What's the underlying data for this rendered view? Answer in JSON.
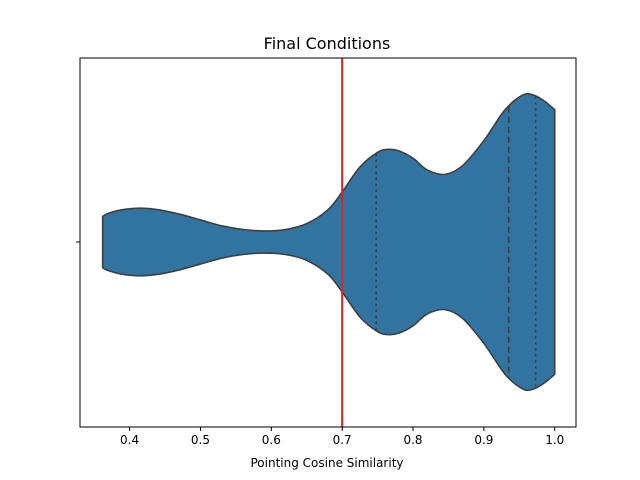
{
  "chart_data": {
    "type": "violin",
    "title": "Final Conditions",
    "xlabel": "Pointing Cosine Similarity",
    "ylabel": "",
    "orientation": "horizontal",
    "xlim": [
      0.33,
      1.03
    ],
    "xticks": [
      0.4,
      0.5,
      0.6,
      0.7,
      0.8,
      0.9,
      1.0
    ],
    "xtick_labels": [
      "0.4",
      "0.5",
      "0.6",
      "0.7",
      "0.8",
      "0.9",
      "1.0"
    ],
    "grid": false,
    "violin": {
      "min": 0.362,
      "max": 1.0,
      "density_profile": [
        {
          "x": 0.362,
          "w": 0.175
        },
        {
          "x": 0.37,
          "w": 0.195
        },
        {
          "x": 0.39,
          "w": 0.22
        },
        {
          "x": 0.415,
          "w": 0.23
        },
        {
          "x": 0.44,
          "w": 0.22
        },
        {
          "x": 0.47,
          "w": 0.19
        },
        {
          "x": 0.5,
          "w": 0.15
        },
        {
          "x": 0.53,
          "w": 0.11
        },
        {
          "x": 0.56,
          "w": 0.085
        },
        {
          "x": 0.59,
          "w": 0.075
        },
        {
          "x": 0.62,
          "w": 0.085
        },
        {
          "x": 0.65,
          "w": 0.125
        },
        {
          "x": 0.68,
          "w": 0.22
        },
        {
          "x": 0.7,
          "w": 0.34
        },
        {
          "x": 0.725,
          "w": 0.51
        },
        {
          "x": 0.75,
          "w": 0.61
        },
        {
          "x": 0.765,
          "w": 0.63
        },
        {
          "x": 0.78,
          "w": 0.62
        },
        {
          "x": 0.8,
          "w": 0.57
        },
        {
          "x": 0.82,
          "w": 0.49
        },
        {
          "x": 0.845,
          "w": 0.46
        },
        {
          "x": 0.87,
          "w": 0.52
        },
        {
          "x": 0.9,
          "w": 0.69
        },
        {
          "x": 0.93,
          "w": 0.9
        },
        {
          "x": 0.955,
          "w": 1.0
        },
        {
          "x": 0.97,
          "w": 1.0
        },
        {
          "x": 0.985,
          "w": 0.96
        },
        {
          "x": 1.0,
          "w": 0.9
        }
      ],
      "quartiles": [
        0.748,
        0.935,
        0.973
      ],
      "fill": "#3274a1",
      "edge": "#3f3f3f"
    },
    "reference_line": {
      "x": 0.7,
      "color": "#d62728"
    }
  }
}
